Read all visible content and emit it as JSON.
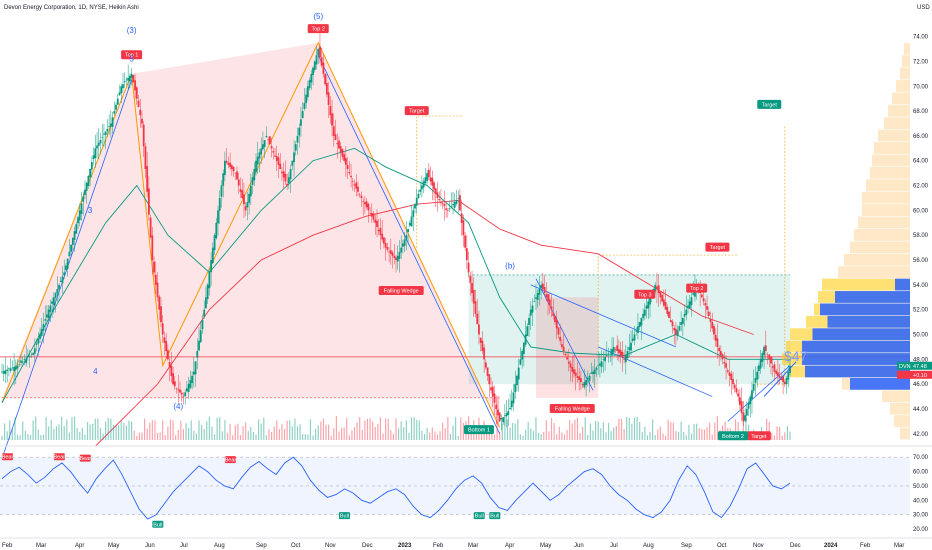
{
  "header": {
    "title": "Devon Energy Corporation, 1D, NYSE, Heikin Ashi",
    "currency": "USD"
  },
  "chart_data": {
    "type": "candlestick",
    "price_axis": {
      "ticks": [
        74.0,
        72.0,
        70.0,
        68.0,
        66.0,
        64.0,
        62.0,
        60.0,
        58.0,
        56.0,
        54.0,
        52.0,
        50.0,
        48.0,
        46.0,
        44.0,
        42.0
      ],
      "tick_labels": [
        "74.00",
        "72.00",
        "70.00",
        "68.00",
        "66.00",
        "64.00",
        "62.00",
        "60.00",
        "58.00",
        "56.00",
        "54.00",
        "52.00",
        "50.00",
        "48.00",
        "46.00",
        "44.00",
        "42.00"
      ],
      "ylim": [
        41.5,
        75.5
      ]
    },
    "rsi_axis": {
      "ticks": [
        70,
        60,
        50,
        40,
        30,
        20
      ],
      "tick_labels": [
        "70.00",
        "60.00",
        "50.00",
        "40.00",
        "30.00",
        "20.00"
      ],
      "ylim": [
        18,
        75
      ],
      "band": [
        30,
        70
      ]
    },
    "time_axis": [
      "Feb",
      "Mar",
      "Apr",
      "May",
      "Jun",
      "Jul",
      "Aug",
      "Sep",
      "Oct",
      "Nov",
      "Dec",
      "2023",
      "Feb",
      "Mar",
      "Apr",
      "May",
      "Jun",
      "Jul",
      "Aug",
      "Sep",
      "Oct",
      "Nov",
      "Dec",
      "2024",
      "Feb",
      "Mar"
    ],
    "price_path": [
      [
        0,
        47
      ],
      [
        3,
        47.5
      ],
      [
        6,
        48.5
      ],
      [
        9,
        52
      ],
      [
        12,
        55
      ],
      [
        15,
        60
      ],
      [
        18,
        65
      ],
      [
        21,
        67
      ],
      [
        23,
        70
      ],
      [
        25,
        71
      ],
      [
        27,
        67
      ],
      [
        29,
        56
      ],
      [
        31,
        50
      ],
      [
        33,
        46
      ],
      [
        35,
        45
      ],
      [
        37,
        47
      ],
      [
        39,
        52
      ],
      [
        41,
        58
      ],
      [
        43,
        64
      ],
      [
        45,
        63
      ],
      [
        47,
        60
      ],
      [
        49,
        64
      ],
      [
        51,
        66
      ],
      [
        53,
        64
      ],
      [
        55,
        62
      ],
      [
        57,
        66
      ],
      [
        59,
        70
      ],
      [
        61,
        73
      ],
      [
        62,
        71
      ],
      [
        64,
        66
      ],
      [
        66,
        64
      ],
      [
        68,
        62
      ],
      [
        70,
        60.5
      ],
      [
        72,
        59
      ],
      [
        74,
        57
      ],
      [
        76,
        56
      ],
      [
        78,
        58
      ],
      [
        80,
        61
      ],
      [
        82,
        63
      ],
      [
        84,
        61
      ],
      [
        86,
        60
      ],
      [
        88,
        61
      ],
      [
        90,
        55
      ],
      [
        92,
        50
      ],
      [
        94,
        46
      ],
      [
        96,
        43
      ],
      [
        98,
        44
      ],
      [
        100,
        48
      ],
      [
        102,
        52
      ],
      [
        104,
        54
      ],
      [
        106,
        52
      ],
      [
        108,
        49
      ],
      [
        110,
        47
      ],
      [
        112,
        46
      ],
      [
        114,
        47
      ],
      [
        116,
        48
      ],
      [
        118,
        49
      ],
      [
        120,
        48
      ],
      [
        122,
        50
      ],
      [
        124,
        52
      ],
      [
        126,
        54
      ],
      [
        128,
        52
      ],
      [
        130,
        50
      ],
      [
        132,
        52
      ],
      [
        134,
        54
      ],
      [
        136,
        52
      ],
      [
        138,
        49
      ],
      [
        140,
        47
      ],
      [
        142,
        45
      ],
      [
        143,
        43
      ],
      [
        145,
        46
      ],
      [
        147,
        49
      ],
      [
        149,
        47
      ],
      [
        151,
        46
      ],
      [
        152,
        47.5
      ]
    ],
    "last_price": 47.48,
    "last_price_label": "DVN",
    "last_price_text": "47.48",
    "last_change_text": "+0.10",
    "big_price_label": "$47",
    "horizontal_lines": [
      48.1,
      48.3
    ],
    "zones": {
      "fib_top": 55.0,
      "fib_bottom": 44.9,
      "range_top": 54.8,
      "range_bottom": 46.0,
      "target_box_top": 57.0
    },
    "markers": [
      {
        "text": "Top 1",
        "color": "#f23645"
      },
      {
        "text": "Top 2",
        "color": "#f23645"
      },
      {
        "text": "Top 3",
        "color": "#f23645"
      },
      {
        "text": "Top 2",
        "color": "#f23645"
      },
      {
        "text": "Target",
        "color": "#f23645"
      },
      {
        "text": "Target",
        "color": "#f23645"
      },
      {
        "text": "Target",
        "color": "#089981"
      },
      {
        "text": "Target",
        "color": "#f23645"
      },
      {
        "text": "Falling Wedge",
        "color": "#f23645"
      },
      {
        "text": "Falling Wedge",
        "color": "#f23645"
      },
      {
        "text": "Bottom 1",
        "color": "#089981"
      },
      {
        "text": "Bottom 2",
        "color": "#089981"
      }
    ],
    "wave_labels": [
      "(3)",
      "(5)",
      "(b)",
      "(4)",
      "3",
      "4",
      "5"
    ],
    "rsi_markers": [
      {
        "text": "Bear"
      },
      {
        "text": "Bear"
      },
      {
        "text": "Bear"
      },
      {
        "text": "Bear"
      },
      {
        "text": "Bull"
      },
      {
        "text": "Bull"
      },
      {
        "text": "Bull"
      },
      {
        "text": "Bull"
      }
    ],
    "rsi_values": [
      55,
      60,
      63,
      58,
      52,
      56,
      62,
      66,
      60,
      52,
      45,
      55,
      62,
      68,
      58,
      46,
      34,
      27,
      30,
      38,
      46,
      52,
      58,
      64,
      60,
      54,
      50,
      48,
      56,
      63,
      67,
      62,
      58,
      66,
      70,
      64,
      54,
      47,
      42,
      44,
      48,
      45,
      40,
      38,
      42,
      46,
      48,
      44,
      36,
      30,
      28,
      33,
      40,
      48,
      54,
      57,
      52,
      42,
      35,
      33,
      40,
      46,
      52,
      46,
      40,
      44,
      50,
      55,
      60,
      62,
      58,
      50,
      44,
      40,
      34,
      30,
      28,
      32,
      40,
      54,
      64,
      58,
      46,
      32,
      28,
      36,
      48,
      62,
      66,
      58,
      50,
      48,
      52
    ],
    "volume_profile": [
      [
        73,
        0.03,
        0
      ],
      [
        72,
        0.04,
        0
      ],
      [
        71,
        0.05,
        0
      ],
      [
        70,
        0.07,
        0
      ],
      [
        69,
        0.09,
        0
      ],
      [
        68,
        0.11,
        0
      ],
      [
        67,
        0.13,
        0
      ],
      [
        66,
        0.16,
        0
      ],
      [
        65,
        0.18,
        0
      ],
      [
        64,
        0.19,
        0
      ],
      [
        63,
        0.2,
        0
      ],
      [
        62,
        0.22,
        0
      ],
      [
        61,
        0.24,
        0
      ],
      [
        60,
        0.24,
        0
      ],
      [
        59,
        0.26,
        0
      ],
      [
        58,
        0.28,
        0
      ],
      [
        57,
        0.3,
        0
      ],
      [
        56,
        0.33,
        0
      ],
      [
        55,
        0.36,
        0
      ],
      [
        54,
        0.44,
        0.1
      ],
      [
        53,
        0.46,
        0.5
      ],
      [
        52,
        0.48,
        0.6
      ],
      [
        51,
        0.52,
        0.55
      ],
      [
        50,
        0.6,
        0.65
      ],
      [
        49,
        0.62,
        0.72
      ],
      [
        48,
        0.64,
        0.72
      ],
      [
        47,
        0.6,
        0.7
      ],
      [
        46,
        0.34,
        0.4
      ],
      [
        45,
        0.14,
        0
      ],
      [
        44,
        0.1,
        0
      ],
      [
        43,
        0.08,
        0
      ],
      [
        42,
        0.05,
        0
      ]
    ]
  }
}
